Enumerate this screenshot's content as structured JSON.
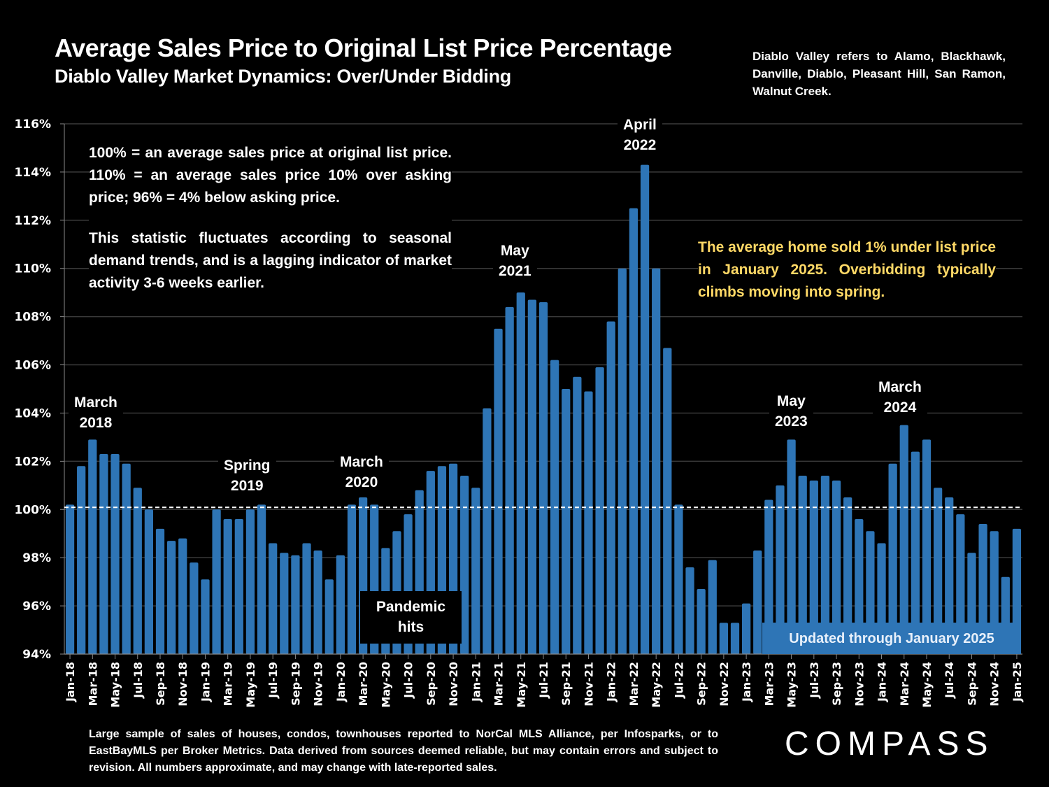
{
  "header": {
    "title": "Average Sales Price to Original List Price Percentage",
    "subtitle": "Diablo Valley Market Dynamics: Over/Under Bidding",
    "region_note": "Diablo Valley refers to Alamo, Blackhawk, Danville, Diablo, Pleasant Hill, San Ramon, Walnut Creek."
  },
  "notes": {
    "definition": "100% = an average sales price at original list price. 110% = an average sales price 10% over asking price; 96% = 4% below asking price.",
    "seasonality": "This statistic fluctuates according to seasonal demand trends, and is a lagging indicator of market activity 3-6 weeks earlier.",
    "highlight": "The average home sold 1% under list price in January 2025. Overbidding typically climbs moving into spring."
  },
  "annotations": {
    "march_2018": [
      "March",
      "2018"
    ],
    "spring_2019": [
      "Spring",
      "2019"
    ],
    "march_2020": [
      "March",
      "2020"
    ],
    "may_2021": [
      "May",
      "2021"
    ],
    "april_2022": [
      "April",
      "2022"
    ],
    "may_2023": [
      "May",
      "2023"
    ],
    "march_2024": [
      "March",
      "2024"
    ],
    "pandemic": [
      "Pandemic",
      "hits"
    ],
    "updated": "Updated through January 2025"
  },
  "footer": {
    "footnote": "Large sample of sales of houses, condos, townhouses reported to NorCal MLS Alliance, per Infosparks, or to EastBayMLS per Broker Metrics. Data derived from sources deemed reliable, but may contain errors and subject to revision. All numbers approximate, and may change with late-reported sales.",
    "logo": "COMPASS"
  },
  "colors": {
    "bar": "#2E75B6",
    "highlight_text": "#FFD966",
    "gridline": "#3A3A3A",
    "reference_line": "#FFFFFF"
  },
  "chart_data": {
    "type": "bar",
    "title": "Average Sales Price to Original List Price Percentage",
    "xlabel": "",
    "ylabel": "",
    "ylim": [
      94,
      116
    ],
    "y_ticks": [
      "94%",
      "96%",
      "98%",
      "100%",
      "102%",
      "104%",
      "106%",
      "108%",
      "110%",
      "112%",
      "114%",
      "116%"
    ],
    "y_tick_values": [
      94,
      96,
      98,
      100,
      102,
      104,
      106,
      108,
      110,
      112,
      114,
      116
    ],
    "grid": true,
    "reference_line": 100,
    "x_tick_labels_every": 2,
    "categories": [
      "Jan-18",
      "Feb-18",
      "Mar-18",
      "Apr-18",
      "May-18",
      "Jun-18",
      "Jul-18",
      "Aug-18",
      "Sep-18",
      "Oct-18",
      "Nov-18",
      "Dec-18",
      "Jan-19",
      "Feb-19",
      "Mar-19",
      "Apr-19",
      "May-19",
      "Jun-19",
      "Jul-19",
      "Aug-19",
      "Sep-19",
      "Oct-19",
      "Nov-19",
      "Dec-19",
      "Jan-20",
      "Feb-20",
      "Mar-20",
      "Apr-20",
      "May-20",
      "Jun-20",
      "Jul-20",
      "Aug-20",
      "Sep-20",
      "Oct-20",
      "Nov-20",
      "Dec-20",
      "Jan-21",
      "Feb-21",
      "Mar-21",
      "Apr-21",
      "May-21",
      "Jun-21",
      "Jul-21",
      "Aug-21",
      "Sep-21",
      "Oct-21",
      "Nov-21",
      "Dec-21",
      "Jan-22",
      "Feb-22",
      "Mar-22",
      "Apr-22",
      "May-22",
      "Jun-22",
      "Jul-22",
      "Aug-22",
      "Sep-22",
      "Oct-22",
      "Nov-22",
      "Dec-22",
      "Jan-23",
      "Feb-23",
      "Mar-23",
      "Apr-23",
      "May-23",
      "Jun-23",
      "Jul-23",
      "Aug-23",
      "Sep-23",
      "Oct-23",
      "Nov-23",
      "Dec-23",
      "Jan-24",
      "Feb-24",
      "Mar-24",
      "Apr-24",
      "May-24",
      "Jun-24",
      "Jul-24",
      "Aug-24",
      "Sep-24",
      "Oct-24",
      "Nov-24",
      "Dec-24",
      "Jan-25"
    ],
    "values": [
      100.2,
      101.8,
      102.9,
      102.3,
      102.3,
      101.9,
      100.9,
      100.0,
      99.2,
      98.7,
      98.8,
      97.8,
      97.1,
      100.0,
      99.6,
      99.6,
      100.0,
      100.2,
      98.6,
      98.2,
      98.1,
      98.6,
      98.3,
      97.1,
      98.1,
      100.2,
      100.5,
      100.2,
      98.4,
      99.1,
      99.8,
      100.8,
      101.6,
      101.8,
      101.9,
      101.4,
      100.9,
      104.2,
      107.5,
      108.4,
      109.0,
      108.7,
      108.6,
      106.2,
      105.0,
      105.5,
      104.9,
      105.9,
      107.8,
      110.0,
      112.5,
      114.3,
      110.0,
      106.7,
      100.2,
      97.6,
      96.7,
      97.9,
      95.3,
      95.3,
      96.1,
      98.3,
      100.4,
      101.0,
      102.9,
      101.4,
      101.2,
      101.4,
      101.2,
      100.5,
      99.6,
      99.1,
      98.6,
      101.9,
      103.5,
      102.4,
      102.9,
      100.9,
      100.5,
      99.8,
      98.2,
      99.4,
      99.1,
      97.2,
      99.2
    ]
  }
}
